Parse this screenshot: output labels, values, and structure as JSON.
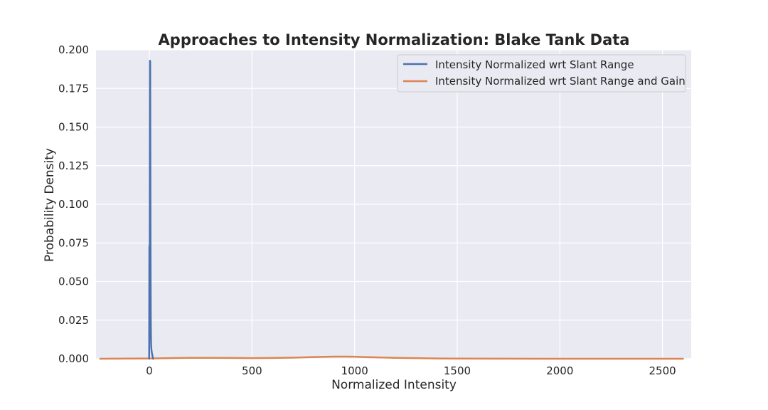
{
  "chart_data": {
    "type": "line",
    "title": "Approaches to Intensity Normalization: Blake Tank Data",
    "xlabel": "Normalized Intensity",
    "ylabel": "Probability Density",
    "xlim": [
      -260,
      2640
    ],
    "ylim": [
      0,
      0.2
    ],
    "xticks": [
      0,
      500,
      1000,
      1500,
      2000,
      2500
    ],
    "xtick_labels": [
      "0",
      "500",
      "1000",
      "1500",
      "2000",
      "2500"
    ],
    "yticks": [
      0,
      0.025,
      0.05,
      0.075,
      0.1,
      0.125,
      0.15,
      0.175,
      0.2
    ],
    "ytick_labels": [
      "0.000",
      "0.025",
      "0.050",
      "0.075",
      "0.100",
      "0.125",
      "0.150",
      "0.175",
      "0.200"
    ],
    "grid": true,
    "background": "#eaeaf2",
    "legend_position": "top-right",
    "series": [
      {
        "name": "Intensity Normalized wrt Slant Range",
        "color": "#4c72b0",
        "x": [
          -1,
          0,
          1,
          2,
          3,
          4,
          5,
          6,
          7,
          8,
          9,
          10,
          12,
          15,
          18
        ],
        "y": [
          0.0,
          0.073,
          0.02,
          0.09,
          0.193,
          0.192,
          0.12,
          0.06,
          0.025,
          0.012,
          0.008,
          0.006,
          0.004,
          0.002,
          0.0
        ]
      },
      {
        "name": "Intensity Normalized wrt Slant Range and Gain",
        "color": "#dd8452",
        "x": [
          -240,
          -100,
          0,
          100,
          200,
          300,
          400,
          500,
          600,
          700,
          800,
          900,
          950,
          1000,
          1100,
          1200,
          1300,
          1400,
          1500,
          1700,
          2000,
          2300,
          2600
        ],
        "y": [
          0.0,
          0.0001,
          0.0002,
          0.0004,
          0.0006,
          0.0006,
          0.0005,
          0.0004,
          0.0005,
          0.0007,
          0.0011,
          0.0014,
          0.0014,
          0.0013,
          0.0009,
          0.0006,
          0.0004,
          0.0002,
          0.0001,
          3e-05,
          1e-05,
          0.0,
          0.0
        ]
      }
    ]
  }
}
